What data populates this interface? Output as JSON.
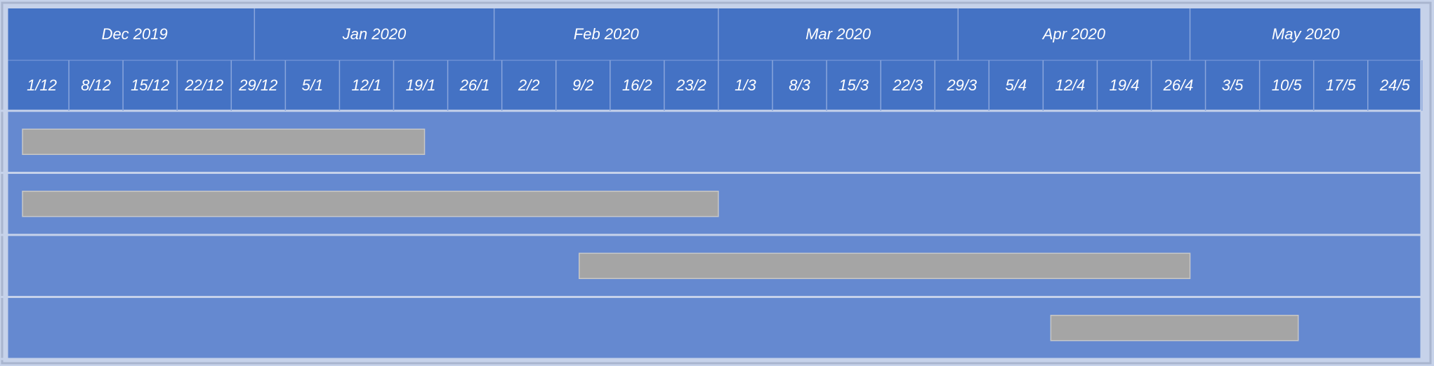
{
  "chart_data": {
    "type": "gantt",
    "months": [
      {
        "label": "Dec 2019",
        "start": "2019-12-01",
        "end": "2020-01-01"
      },
      {
        "label": "Jan 2020",
        "start": "2020-01-01",
        "end": "2020-02-01"
      },
      {
        "label": "Feb 2020",
        "start": "2020-02-01",
        "end": "2020-03-01"
      },
      {
        "label": "Mar 2020",
        "start": "2020-03-01",
        "end": "2020-04-01"
      },
      {
        "label": "Apr 2020",
        "start": "2020-04-01",
        "end": "2020-05-01"
      },
      {
        "label": "May 2020",
        "start": "2020-05-01",
        "end": "2020-06-01"
      }
    ],
    "week_labels": [
      "1/12",
      "8/12",
      "15/12",
      "22/12",
      "29/12",
      "5/1",
      "12/1",
      "19/1",
      "26/1",
      "2/2",
      "9/2",
      "16/2",
      "23/2",
      "1/3",
      "8/3",
      "15/3",
      "22/3",
      "29/3",
      "5/4",
      "12/4",
      "19/4",
      "26/4",
      "3/5",
      "10/5",
      "17/5",
      "24/5"
    ],
    "tasks": [
      {
        "start": "2019-12-02",
        "end": "2020-01-23"
      },
      {
        "start": "2019-12-02",
        "end": "2020-03-01"
      },
      {
        "start": "2020-02-12",
        "end": "2020-05-01"
      },
      {
        "start": "2020-04-13",
        "end": "2020-05-15"
      }
    ],
    "colors": {
      "header": "#4472c4",
      "body": "#6589d0",
      "bar": "#a5a5a5",
      "grid": "#c6d2ea",
      "text": "#ffffff"
    }
  }
}
